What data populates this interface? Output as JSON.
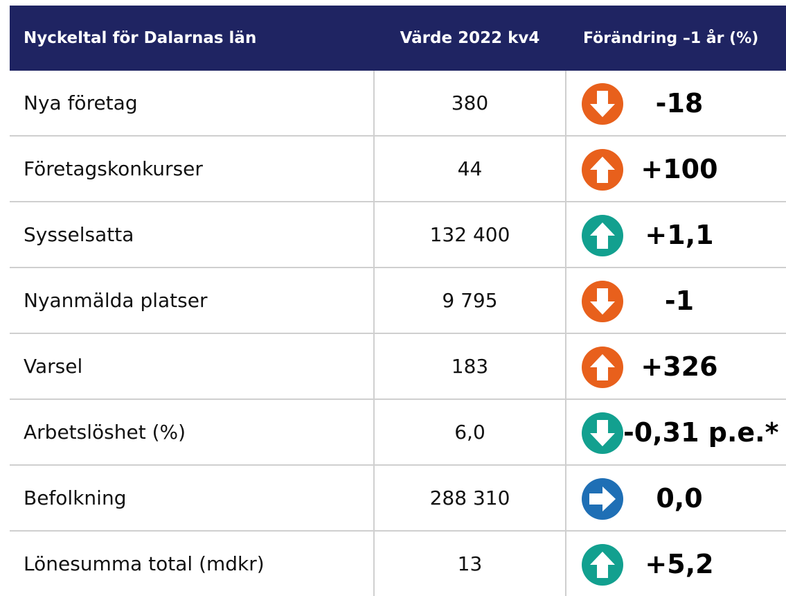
{
  "table": {
    "header": [
      "Nyckeltal för Dalarnas län",
      "Värde 2022 kv4",
      "Förändring –1 år (%)"
    ],
    "rows": [
      [
        "Nya företag",
        "380",
        "-18"
      ],
      [
        "Företagskonkurser",
        "44",
        "+100"
      ],
      [
        "Sysselsatta",
        "132 400",
        "+1,1"
      ],
      [
        "Nyanmälda platser",
        "9 795",
        "-1"
      ],
      [
        "Varsel",
        "183",
        "+326"
      ],
      [
        "Arbetslöshet (%)",
        "6,0",
        "-0,31 p.e.*"
      ],
      [
        "Befolkning",
        "288 310",
        "0,0"
      ],
      [
        "Lönesumma total (mdkr)",
        "13",
        "+5,2"
      ]
    ]
  }
}
